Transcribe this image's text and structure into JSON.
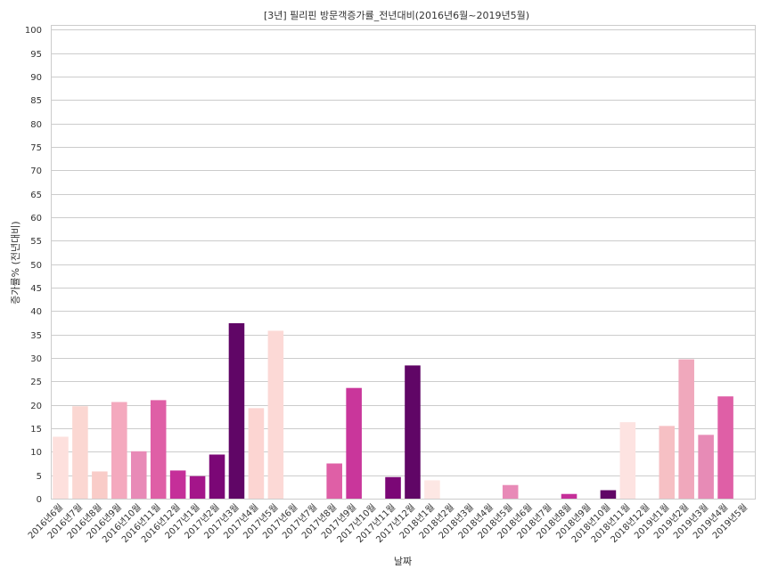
{
  "chart_data": {
    "type": "bar",
    "title": "[3년] 필리핀 방문객증가률_전년대비(2016년6월~2019년5월)",
    "xlabel": "날짜",
    "ylabel": "증가률% (전년대비)",
    "ylim": [
      0,
      101
    ],
    "yticks": [
      0,
      5,
      10,
      15,
      20,
      25,
      30,
      35,
      40,
      45,
      50,
      55,
      60,
      65,
      70,
      75,
      80,
      85,
      90,
      95,
      100
    ],
    "grid": true,
    "categories": [
      "2016년6월",
      "2016년7월",
      "2016년8월",
      "2016년9월",
      "2016년10월",
      "2016년11월",
      "2016년12월",
      "2017년1월",
      "2017년2월",
      "2017년3월",
      "2017년4월",
      "2017년5월",
      "2017년6월",
      "2017년7월",
      "2017년8월",
      "2017년9월",
      "2017년10월",
      "2017년11월",
      "2017년12월",
      "2018년1월",
      "2018년2월",
      "2018년3월",
      "2018년4월",
      "2018년5월",
      "2018년6월",
      "2018년7월",
      "2018년8월",
      "2018년9월",
      "2018년10월",
      "2018년11월",
      "2018년12월",
      "2019년1월",
      "2019년2월",
      "2019년3월",
      "2019년4월",
      "2019년5월"
    ],
    "values": [
      13.2,
      19.7,
      5.8,
      20.6,
      10.1,
      21.0,
      6.0,
      4.8,
      9.4,
      37.4,
      19.3,
      35.8,
      0,
      0,
      7.5,
      23.6,
      0,
      4.6,
      28.4,
      3.9,
      0,
      0,
      0,
      2.9,
      0,
      0,
      1.0,
      0,
      1.8,
      16.3,
      0,
      15.5,
      29.7,
      13.6,
      21.8,
      0
    ],
    "colors": [
      "#fde0dd",
      "#fbd7d2",
      "#f9ccc8",
      "#f4a9be",
      "#e88ab7",
      "#df5fa6",
      "#c52f99",
      "#a4158a",
      "#7b0776",
      "#600666",
      "#fcd5d2",
      "#fcd9d6",
      "#fcd9d6",
      "#fcd9d6",
      "#df5fa6",
      "#c9369b",
      "#fcd9d6",
      "#7b0776",
      "#600666",
      "#fde7e4",
      "#fcd9d6",
      "#fcd9d6",
      "#fcd9d6",
      "#e88ab7",
      "#fcd9d6",
      "#fcd9d6",
      "#c52f99",
      "#fcd9d6",
      "#600666",
      "#fde3e1",
      "#fcd9d6",
      "#f6c0c4",
      "#f0a8bc",
      "#e78bb6",
      "#df5fa6",
      "#c52f99"
    ]
  }
}
